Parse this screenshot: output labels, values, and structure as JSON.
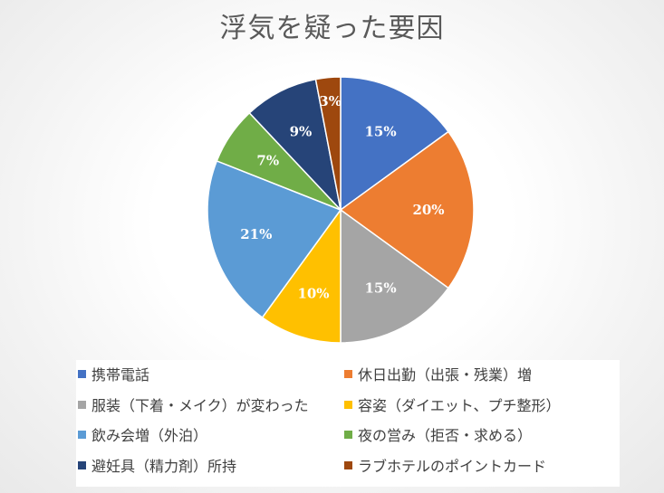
{
  "chart_data": {
    "type": "pie",
    "title": "浮気を疑った要因",
    "categories": [
      "携帯電話",
      "休日出勤（出張・残業）増",
      "服装（下着・メイク）が変わった",
      "容姿（ダイエット、プチ整形）",
      "飲み会増（外泊）",
      "夜の営み（拒否・求める）",
      "避妊具（精力剤）所持",
      "ラブホテルのポイントカード"
    ],
    "values": [
      15,
      20,
      15,
      10,
      21,
      7,
      9,
      3
    ],
    "data_labels": [
      "15%",
      "20%",
      "15%",
      "10%",
      "21%",
      "7%",
      "9%",
      "3%"
    ],
    "colors": [
      "#4472C4",
      "#ED7D31",
      "#A5A5A5",
      "#FFC000",
      "#5B9BD5",
      "#70AD47",
      "#264478",
      "#9E480E"
    ],
    "legend_position": "bottom"
  }
}
